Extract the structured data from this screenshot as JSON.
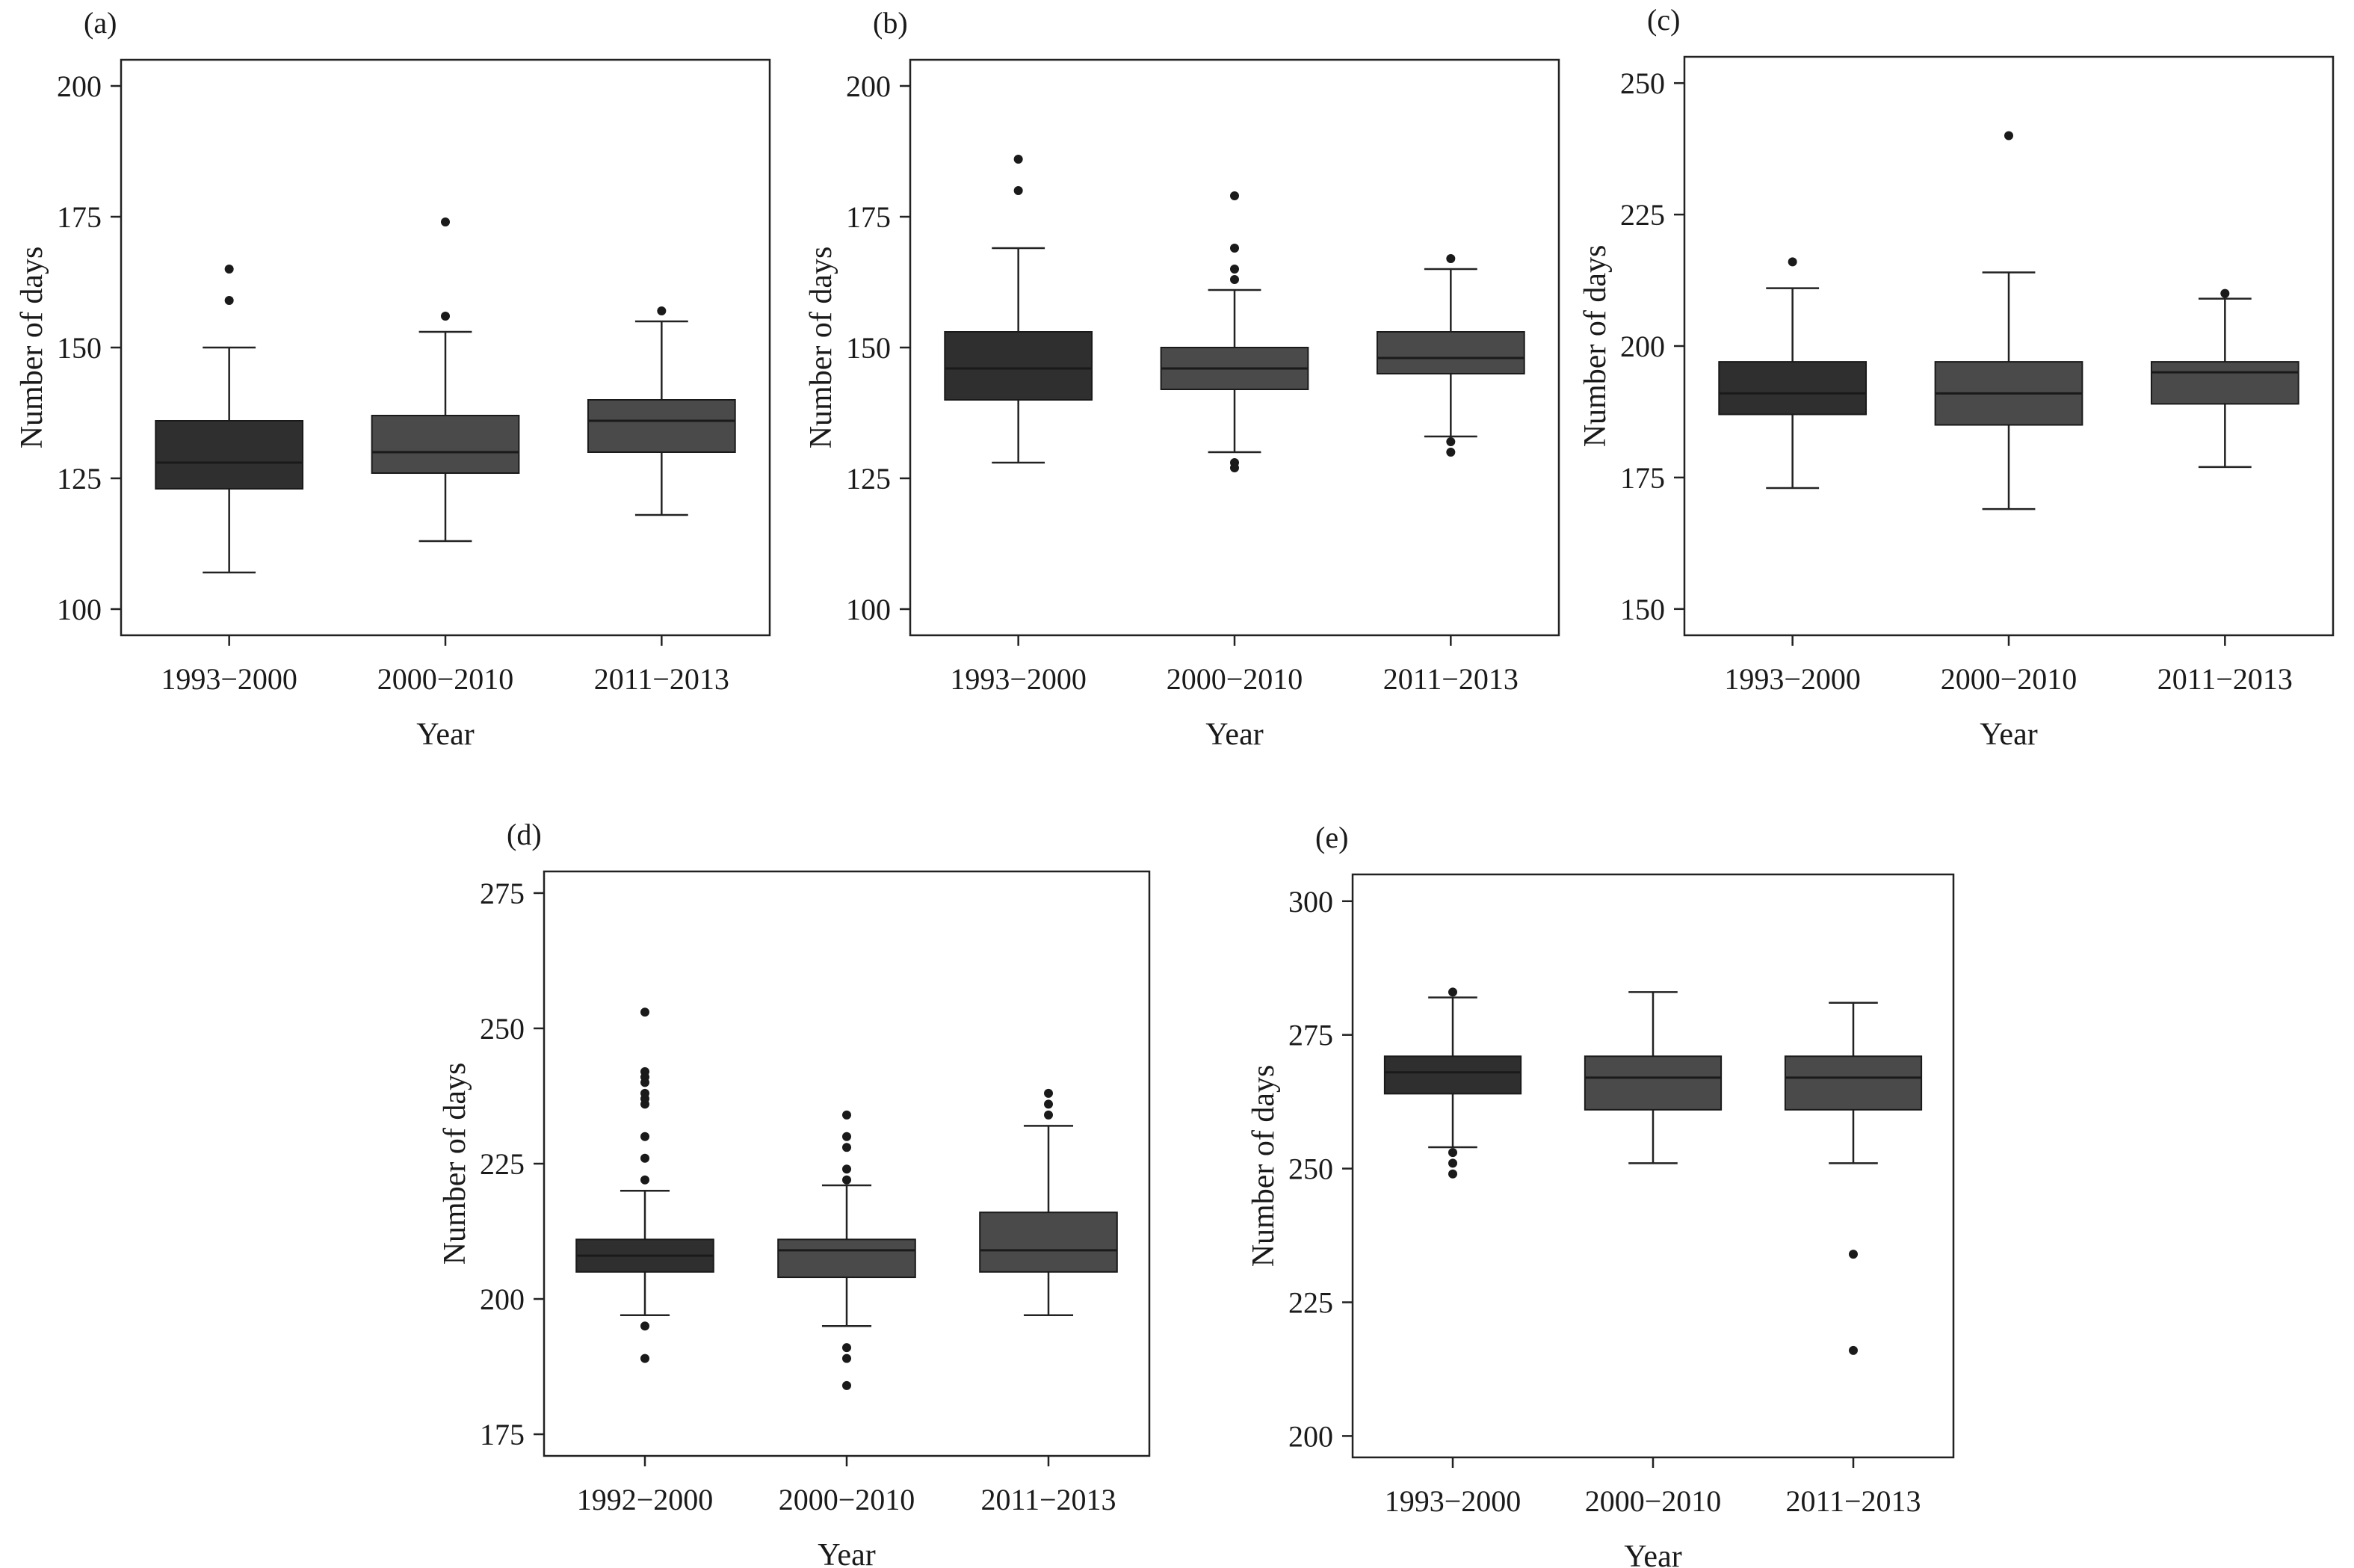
{
  "colors": {
    "box_dark": "#2f2f2f",
    "box_mid": "#4a4a4a",
    "line": "#222222",
    "point": "#1a1a1a"
  },
  "chart_data": [
    {
      "type": "box",
      "panel_label": "(a)",
      "xlabel": "Year",
      "ylabel": "Number of days",
      "ylim": [
        95,
        205
      ],
      "yticks": [
        100,
        125,
        150,
        175,
        200
      ],
      "categories": [
        "1993−2000",
        "2000−2010",
        "2011−2013"
      ],
      "boxes": [
        {
          "q1": 123,
          "median": 128,
          "q3": 136,
          "whisker_low": 107,
          "whisker_high": 150,
          "outliers": [
            159,
            165
          ]
        },
        {
          "q1": 126,
          "median": 130,
          "q3": 137,
          "whisker_low": 113,
          "whisker_high": 153,
          "outliers": [
            156,
            174
          ]
        },
        {
          "q1": 130,
          "median": 136,
          "q3": 140,
          "whisker_low": 118,
          "whisker_high": 155,
          "outliers": [
            157
          ]
        }
      ],
      "grid": false
    },
    {
      "type": "box",
      "panel_label": "(b)",
      "xlabel": "Year",
      "ylabel": "Number of days",
      "ylim": [
        95,
        205
      ],
      "yticks": [
        100,
        125,
        150,
        175,
        200
      ],
      "categories": [
        "1993−2000",
        "2000−2010",
        "2011−2013"
      ],
      "boxes": [
        {
          "q1": 140,
          "median": 146,
          "q3": 153,
          "whisker_low": 128,
          "whisker_high": 169,
          "outliers": [
            180,
            186
          ]
        },
        {
          "q1": 142,
          "median": 146,
          "q3": 150,
          "whisker_low": 130,
          "whisker_high": 161,
          "outliers": [
            127,
            128,
            163,
            165,
            169,
            179
          ]
        },
        {
          "q1": 145,
          "median": 148,
          "q3": 153,
          "whisker_low": 133,
          "whisker_high": 165,
          "outliers": [
            130,
            132,
            167
          ]
        }
      ],
      "grid": false
    },
    {
      "type": "box",
      "panel_label": "(c)",
      "xlabel": "Year",
      "ylabel": "Number of days",
      "ylim": [
        145,
        255
      ],
      "yticks": [
        150,
        175,
        200,
        225,
        250
      ],
      "categories": [
        "1993−2000",
        "2000−2010",
        "2011−2013"
      ],
      "boxes": [
        {
          "q1": 187,
          "median": 191,
          "q3": 197,
          "whisker_low": 173,
          "whisker_high": 211,
          "outliers": [
            216
          ]
        },
        {
          "q1": 185,
          "median": 191,
          "q3": 197,
          "whisker_low": 169,
          "whisker_high": 214,
          "outliers": [
            240
          ]
        },
        {
          "q1": 189,
          "median": 195,
          "q3": 197,
          "whisker_low": 177,
          "whisker_high": 209,
          "outliers": [
            210
          ]
        }
      ],
      "grid": false
    },
    {
      "type": "box",
      "panel_label": "(d)",
      "xlabel": "Year",
      "ylabel": "Number of days",
      "ylim": [
        171,
        279
      ],
      "yticks": [
        175,
        200,
        225,
        250,
        275
      ],
      "categories": [
        "1992−2000",
        "2000−2010",
        "2011−2013"
      ],
      "boxes": [
        {
          "q1": 205,
          "median": 208,
          "q3": 211,
          "whisker_low": 197,
          "whisker_high": 220,
          "outliers": [
            189,
            195,
            222,
            226,
            230,
            236,
            237,
            238,
            240,
            241,
            242,
            253
          ]
        },
        {
          "q1": 204,
          "median": 209,
          "q3": 211,
          "whisker_low": 195,
          "whisker_high": 221,
          "outliers": [
            184,
            189,
            191,
            222,
            224,
            228,
            230,
            234
          ]
        },
        {
          "q1": 205,
          "median": 209,
          "q3": 216,
          "whisker_low": 197,
          "whisker_high": 232,
          "outliers": [
            234,
            236,
            238
          ]
        }
      ],
      "grid": false
    },
    {
      "type": "box",
      "panel_label": "(e)",
      "xlabel": "Year",
      "ylabel": "Number of days",
      "ylim": [
        196,
        305
      ],
      "yticks": [
        200,
        225,
        250,
        275,
        300
      ],
      "categories": [
        "1993−2000",
        "2000−2010",
        "2011−2013"
      ],
      "boxes": [
        {
          "q1": 264,
          "median": 268,
          "q3": 271,
          "whisker_low": 254,
          "whisker_high": 282,
          "outliers": [
            249,
            251,
            253,
            283
          ]
        },
        {
          "q1": 261,
          "median": 267,
          "q3": 271,
          "whisker_low": 251,
          "whisker_high": 283,
          "outliers": []
        },
        {
          "q1": 261,
          "median": 267,
          "q3": 271,
          "whisker_low": 251,
          "whisker_high": 281,
          "outliers": [
            216,
            234
          ]
        }
      ],
      "grid": false
    }
  ]
}
